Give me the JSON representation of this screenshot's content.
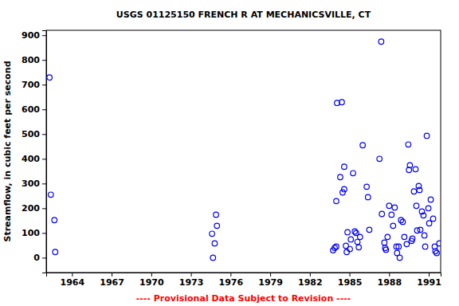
{
  "chart_data": {
    "type": "scatter",
    "title": "USGS 01125150 FRENCH R AT MECHANICSVILLE, CT",
    "y_label": "Streamflow, in cubic feet per second",
    "annotation": "---- Provisional Data Subject to Revision ----",
    "color": "#0000ff",
    "marker": "open-circle",
    "grid": false,
    "xlim": [
      1962.05,
      1991.9
    ],
    "xticks": [
      1964,
      1967,
      1970,
      1973,
      1976,
      1979,
      1982,
      1985,
      1988,
      1991
    ],
    "ylim": [
      -60,
      920
    ],
    "yticks": [
      0,
      100,
      200,
      300,
      400,
      500,
      600,
      700,
      800,
      900
    ],
    "x": [
      1962.3,
      1962.4,
      1962.67,
      1962.73,
      1974.6,
      1974.9,
      1974.97,
      1974.8,
      1974.67,
      1983.76,
      1983.88,
      1984.0,
      1984.0,
      1984.06,
      1984.42,
      1984.3,
      1984.48,
      1984.6,
      1984.6,
      1984.73,
      1984.79,
      1984.85,
      1985.03,
      1985.1,
      1985.27,
      1985.4,
      1985.5,
      1985.6,
      1985.7,
      1985.8,
      1986.0,
      1986.3,
      1986.4,
      1986.5,
      1987.27,
      1987.4,
      1987.45,
      1987.64,
      1987.7,
      1987.76,
      1987.88,
      1988.0,
      1988.18,
      1988.3,
      1988.42,
      1988.55,
      1988.6,
      1988.72,
      1988.8,
      1988.9,
      1989.03,
      1989.15,
      1989.33,
      1989.45,
      1989.5,
      1989.57,
      1989.7,
      1989.76,
      1989.88,
      1990.0,
      1990.06,
      1990.12,
      1990.24,
      1990.3,
      1990.36,
      1990.48,
      1990.6,
      1990.67,
      1990.73,
      1990.85,
      1990.97,
      1991.03,
      1991.15,
      1991.33,
      1991.45,
      1991.5,
      1991.6,
      1991.8
    ],
    "values": [
      729,
      255,
      152,
      23,
      97,
      174,
      129,
      58,
      0,
      30,
      40,
      45,
      229,
      626,
      629,
      326,
      264,
      277,
      368,
      48,
      23,
      103,
      35,
      74,
      342,
      106,
      100,
      64,
      42,
      84,
      455,
      287,
      245,
      113,
      400,
      874,
      177,
      61,
      39,
      32,
      84,
      210,
      174,
      129,
      203,
      45,
      19,
      45,
      0,
      152,
      145,
      84,
      55,
      458,
      355,
      374,
      68,
      77,
      268,
      358,
      210,
      110,
      290,
      274,
      113,
      187,
      171,
      90,
      45,
      493,
      200,
      139,
      235,
      158,
      45,
      26,
      19,
      58
    ]
  }
}
